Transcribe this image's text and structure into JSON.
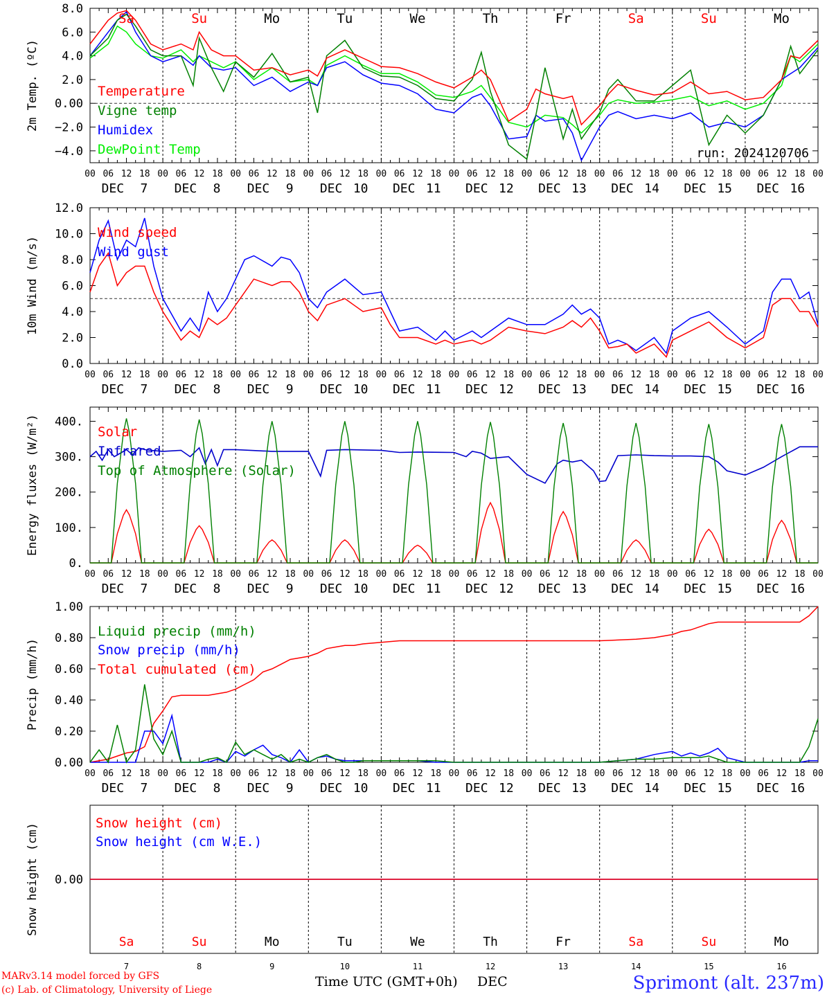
{
  "title": "",
  "station": "Sprimont (alt. 237m)",
  "credits": [
    "MARv3.14 model forced by GFS",
    "(c) Lab. of Climatology, University of Liege"
  ],
  "time_axis_label": "Time UTC (GMT+0h)",
  "month_label": "DEC",
  "days": [
    {
      "abbr": "Sa",
      "num": "7",
      "weekend": true
    },
    {
      "abbr": "Su",
      "num": "8",
      "weekend": true
    },
    {
      "abbr": "Mo",
      "num": "9",
      "weekend": false
    },
    {
      "abbr": "Tu",
      "num": "10",
      "weekend": false
    },
    {
      "abbr": "We",
      "num": "11",
      "weekend": false
    },
    {
      "abbr": "Th",
      "num": "12",
      "weekend": false
    },
    {
      "abbr": "Fr",
      "num": "13",
      "weekend": false
    },
    {
      "abbr": "Sa",
      "num": "14",
      "weekend": true
    },
    {
      "abbr": "Su",
      "num": "15",
      "weekend": true
    },
    {
      "abbr": "Mo",
      "num": "16",
      "weekend": false
    }
  ],
  "hour_ticks": [
    "00",
    "06",
    "12",
    "18"
  ],
  "final_hour_tick": "00",
  "colors": {
    "weekend": "#ff0000",
    "weekday": "#000000",
    "red": "#ff0000",
    "green": "#008000",
    "blue": "#0000ff",
    "lightgreen": "#00ee00"
  },
  "chart_data": [
    {
      "type": "line",
      "ylabel": "2m Temp. (ºC)",
      "ylim": [
        -5,
        8
      ],
      "yticks": [
        "8.0",
        "6.0",
        "4.0",
        "2.0",
        "0.00",
        "−2.0",
        "−4.0"
      ],
      "ytick_values": [
        8,
        6,
        4,
        2,
        0,
        -2,
        -4
      ],
      "refline": 0,
      "annotation": "run: 2024120706",
      "x_hours": [
        0,
        6,
        9,
        12,
        15,
        20,
        24,
        30,
        34,
        36,
        40,
        44,
        48,
        54,
        60,
        66,
        72,
        75,
        78,
        84,
        90,
        96,
        102,
        108,
        114,
        120,
        126,
        129,
        132,
        138,
        144,
        147,
        150,
        156,
        159,
        162,
        168,
        171,
        174,
        180,
        186,
        192,
        198,
        204,
        210,
        216,
        222,
        228,
        231,
        234,
        240
      ],
      "series": [
        {
          "name": "Temperature",
          "color": "#ff0000",
          "values": [
            5.0,
            7.0,
            7.6,
            7.8,
            7.0,
            5.0,
            4.5,
            5.0,
            4.5,
            6.0,
            4.5,
            4.0,
            4.0,
            2.8,
            3.0,
            2.4,
            2.8,
            2.3,
            3.8,
            4.5,
            3.8,
            3.1,
            3.0,
            2.5,
            1.8,
            1.3,
            2.2,
            2.8,
            2.0,
            -1.5,
            -0.5,
            1.2,
            0.8,
            0.4,
            0.6,
            -1.8,
            -0.2,
            0.8,
            1.6,
            1.1,
            0.7,
            0.9,
            1.8,
            0.8,
            1.0,
            0.3,
            0.5,
            2.0,
            4.0,
            3.8,
            5.3
          ]
        },
        {
          "name": "Vigne temp",
          "color": "#008000",
          "values": [
            4.0,
            5.5,
            7.0,
            7.5,
            6.5,
            4.5,
            4.0,
            4.0,
            1.5,
            5.5,
            3.0,
            1.0,
            3.5,
            2.2,
            4.2,
            1.8,
            2.2,
            -0.8,
            4.0,
            5.3,
            3.0,
            2.3,
            2.2,
            1.5,
            0.4,
            0.2,
            2.0,
            4.3,
            1.0,
            -3.5,
            -4.7,
            -1.0,
            3.0,
            -3.0,
            -0.5,
            -3.0,
            -0.8,
            1.2,
            2.0,
            0.2,
            0.2,
            1.5,
            2.8,
            -3.5,
            -1.0,
            -2.5,
            -1.0,
            2.0,
            4.8,
            2.5,
            4.5
          ]
        },
        {
          "name": "Humidex",
          "color": "#0000ff",
          "values": [
            4.0,
            6.0,
            7.0,
            7.7,
            6.0,
            4.0,
            3.5,
            4.0,
            3.2,
            4.0,
            3.0,
            2.8,
            3.0,
            1.5,
            2.2,
            1.0,
            1.8,
            1.5,
            3.0,
            3.5,
            2.4,
            1.7,
            1.5,
            0.8,
            -0.5,
            -0.8,
            0.5,
            0.8,
            -0.2,
            -3.0,
            -2.8,
            -1.0,
            -1.5,
            -1.3,
            -2.5,
            -4.8,
            -2.0,
            -1.0,
            -0.7,
            -1.3,
            -1.0,
            -1.3,
            -0.8,
            -2.0,
            -1.6,
            -2.0,
            -1.0,
            2.0,
            2.5,
            3.0,
            4.7
          ]
        },
        {
          "name": "DewPoint Temp",
          "color": "#00ee00",
          "values": [
            3.8,
            5.0,
            6.5,
            6.0,
            5.0,
            4.0,
            3.8,
            4.5,
            3.5,
            4.0,
            3.5,
            3.0,
            3.5,
            2.0,
            3.0,
            1.8,
            2.0,
            1.5,
            3.2,
            4.0,
            3.2,
            2.5,
            2.5,
            1.8,
            0.7,
            0.5,
            1.0,
            1.5,
            0.5,
            -1.6,
            -2.0,
            -1.5,
            -1.0,
            -1.2,
            -1.8,
            -2.5,
            -1.0,
            0.0,
            0.3,
            0.0,
            0.1,
            0.3,
            0.6,
            -0.2,
            0.2,
            -0.5,
            0.0,
            1.5,
            4.0,
            3.5,
            5.0
          ]
        }
      ]
    },
    {
      "type": "line",
      "ylabel": "10m Wind (m/s)",
      "ylim": [
        0,
        12
      ],
      "yticks": [
        "12.0",
        "10.0",
        "8.0",
        "6.0",
        "4.0",
        "2.0",
        "0.0"
      ],
      "ytick_values": [
        12,
        10,
        8,
        6,
        4,
        2,
        0
      ],
      "refline": 5,
      "x_hours": [
        0,
        3,
        6,
        9,
        12,
        15,
        18,
        21,
        24,
        30,
        33,
        36,
        39,
        42,
        45,
        48,
        51,
        54,
        60,
        63,
        66,
        69,
        72,
        75,
        78,
        84,
        90,
        96,
        99,
        102,
        108,
        114,
        117,
        120,
        126,
        129,
        132,
        138,
        144,
        150,
        156,
        159,
        162,
        165,
        168,
        171,
        174,
        177,
        180,
        186,
        190,
        192,
        198,
        204,
        210,
        216,
        222,
        225,
        228,
        231,
        234,
        237,
        240
      ],
      "series": [
        {
          "name": "Wind speed",
          "color": "#ff0000",
          "values": [
            5.5,
            7.5,
            8.5,
            6.0,
            7.0,
            7.5,
            7.5,
            5.5,
            4.0,
            1.8,
            2.5,
            2.0,
            3.5,
            3.0,
            3.5,
            4.5,
            5.5,
            6.5,
            6.0,
            6.3,
            6.3,
            5.5,
            4.0,
            3.3,
            4.5,
            5.0,
            4.0,
            4.3,
            3.0,
            2.0,
            2.0,
            1.5,
            1.8,
            1.5,
            1.8,
            1.5,
            1.8,
            2.8,
            2.5,
            2.3,
            2.8,
            3.3,
            2.8,
            3.5,
            2.5,
            1.2,
            1.3,
            1.5,
            0.8,
            1.5,
            0.5,
            1.8,
            2.5,
            3.2,
            2.0,
            1.2,
            2.0,
            4.5,
            5.0,
            5.0,
            4.0,
            4.0,
            2.8
          ]
        },
        {
          "name": "Wind gust",
          "color": "#0000ff",
          "values": [
            7.0,
            9.5,
            11.0,
            8.0,
            9.5,
            9.0,
            11.2,
            7.5,
            5.0,
            2.5,
            3.5,
            2.5,
            5.5,
            4.0,
            5.0,
            6.5,
            8.0,
            8.3,
            7.5,
            8.2,
            8.0,
            7.0,
            5.0,
            4.3,
            5.5,
            6.5,
            5.3,
            5.5,
            4.0,
            2.5,
            2.8,
            1.8,
            2.5,
            1.8,
            2.5,
            2.0,
            2.5,
            3.5,
            3.0,
            3.0,
            3.8,
            4.5,
            3.8,
            4.2,
            3.5,
            1.5,
            1.8,
            1.5,
            1.0,
            2.0,
            0.8,
            2.5,
            3.5,
            4.0,
            2.8,
            1.5,
            2.5,
            5.5,
            6.5,
            6.5,
            5.0,
            5.5,
            3.0
          ]
        }
      ]
    },
    {
      "type": "line",
      "ylabel": "Energy fluxes (W/m²)",
      "ylim": [
        0,
        440
      ],
      "yticks": [
        "400.",
        "300.",
        "200.",
        "100.",
        "0."
      ],
      "ytick_values": [
        400,
        300,
        200,
        100,
        0
      ],
      "daylight": {
        "sunrise_hour": 7,
        "sunset_hour": 17,
        "noon_hour": 12
      },
      "series": [
        {
          "name": "Solar",
          "color": "#ff0000",
          "peaks": [
            150,
            105,
            65,
            65,
            50,
            170,
            145,
            65,
            95,
            120
          ]
        },
        {
          "name": "Infrared",
          "color": "#0000cc",
          "x_hours": [
            0,
            2,
            4,
            6,
            8,
            10,
            12,
            14,
            16,
            18,
            20,
            24,
            30,
            33,
            36,
            38,
            40,
            42,
            44,
            48,
            60,
            72,
            76,
            78,
            84,
            96,
            102,
            108,
            120,
            124,
            126,
            129,
            132,
            138,
            144,
            150,
            154,
            156,
            159,
            162,
            166,
            168,
            170,
            174,
            180,
            186,
            192,
            198,
            204,
            207,
            210,
            216,
            222,
            228,
            234,
            240
          ],
          "values": [
            300,
            315,
            290,
            320,
            300,
            310,
            320,
            305,
            325,
            320,
            318,
            315,
            318,
            300,
            325,
            280,
            320,
            275,
            320,
            320,
            315,
            315,
            245,
            318,
            320,
            318,
            312,
            313,
            312,
            300,
            315,
            310,
            295,
            300,
            250,
            225,
            280,
            290,
            285,
            290,
            260,
            230,
            232,
            303,
            305,
            303,
            302,
            302,
            300,
            285,
            260,
            248,
            270,
            300,
            328,
            328
          ]
        },
        {
          "name": "Top of Atmosphere (Solar)",
          "color": "#008000",
          "peaks": [
            408,
            405,
            400,
            400,
            400,
            398,
            395,
            395,
            392,
            392
          ]
        }
      ]
    },
    {
      "type": "line",
      "ylabel": "Precip (mm/h)",
      "ylim": [
        0,
        1
      ],
      "yticks": [
        "1.00",
        "0.80",
        "0.60",
        "0.40",
        "0.20",
        "0.00"
      ],
      "ytick_values": [
        1,
        0.8,
        0.6,
        0.4,
        0.2,
        0
      ],
      "x_hours": [
        0,
        3,
        6,
        9,
        12,
        15,
        18,
        21,
        24,
        27,
        30,
        33,
        36,
        39,
        42,
        45,
        48,
        51,
        54,
        57,
        60,
        63,
        66,
        69,
        72,
        75,
        78,
        81,
        84,
        87,
        90,
        96,
        102,
        108,
        114,
        120,
        132,
        144,
        156,
        168,
        180,
        186,
        192,
        195,
        198,
        201,
        204,
        207,
        210,
        216,
        222,
        228,
        234,
        237,
        240
      ],
      "series": [
        {
          "name": "Liquid precip (mm/h)",
          "color": "#008000",
          "values": [
            0.0,
            0.08,
            0.0,
            0.24,
            0.0,
            0.08,
            0.5,
            0.15,
            0.05,
            0.2,
            0.0,
            0.0,
            0.0,
            0.02,
            0.03,
            0.0,
            0.13,
            0.05,
            0.08,
            0.05,
            0.02,
            0.05,
            0.0,
            0.02,
            0.0,
            0.03,
            0.05,
            0.02,
            0.0,
            0.0,
            0.01,
            0.01,
            0.01,
            0.01,
            0.01,
            0.0,
            0.0,
            0.0,
            0.0,
            0.0,
            0.02,
            0.02,
            0.03,
            0.03,
            0.03,
            0.03,
            0.04,
            0.02,
            0.0,
            0.0,
            0.0,
            0.0,
            0.0,
            0.1,
            0.28
          ]
        },
        {
          "name": "Snow precip (mm/h)",
          "color": "#0000ff",
          "values": [
            0.0,
            0.0,
            0.0,
            0.0,
            0.0,
            0.0,
            0.2,
            0.2,
            0.12,
            0.3,
            0.0,
            0.0,
            0.0,
            0.0,
            0.02,
            0.0,
            0.07,
            0.04,
            0.08,
            0.11,
            0.05,
            0.03,
            0.0,
            0.08,
            0.0,
            0.03,
            0.04,
            0.02,
            0.01,
            0.01,
            0.01,
            0.01,
            0.01,
            0.01,
            0.0,
            0.0,
            0.0,
            0.0,
            0.0,
            0.0,
            0.02,
            0.05,
            0.07,
            0.04,
            0.06,
            0.04,
            0.06,
            0.09,
            0.03,
            0.0,
            0.0,
            0.0,
            0.0,
            0.01,
            0.01
          ]
        },
        {
          "name": "Total cumulated (cm)",
          "color": "#ff0000",
          "values": [
            0.0,
            0.01,
            0.02,
            0.04,
            0.06,
            0.07,
            0.1,
            0.25,
            0.33,
            0.42,
            0.43,
            0.43,
            0.43,
            0.43,
            0.44,
            0.45,
            0.47,
            0.5,
            0.53,
            0.58,
            0.6,
            0.63,
            0.66,
            0.67,
            0.68,
            0.7,
            0.73,
            0.74,
            0.75,
            0.75,
            0.76,
            0.77,
            0.78,
            0.78,
            0.78,
            0.78,
            0.78,
            0.78,
            0.78,
            0.78,
            0.79,
            0.8,
            0.82,
            0.84,
            0.85,
            0.87,
            0.89,
            0.9,
            0.9,
            0.9,
            0.9,
            0.9,
            0.9,
            0.94,
            1.0
          ]
        }
      ]
    },
    {
      "type": "line",
      "ylabel": "Snow height (cm)",
      "ylim": [
        -1,
        1
      ],
      "yticks": [
        "0.00"
      ],
      "ytick_values": [
        0
      ],
      "x_hours": [
        0,
        240
      ],
      "series": [
        {
          "name": "Snow height (cm)",
          "color": "#ff0000",
          "values": [
            0,
            0
          ]
        },
        {
          "name": "Snow height (cm W.E.)",
          "color": "#0000ff",
          "values": [
            0,
            0
          ]
        }
      ]
    }
  ]
}
